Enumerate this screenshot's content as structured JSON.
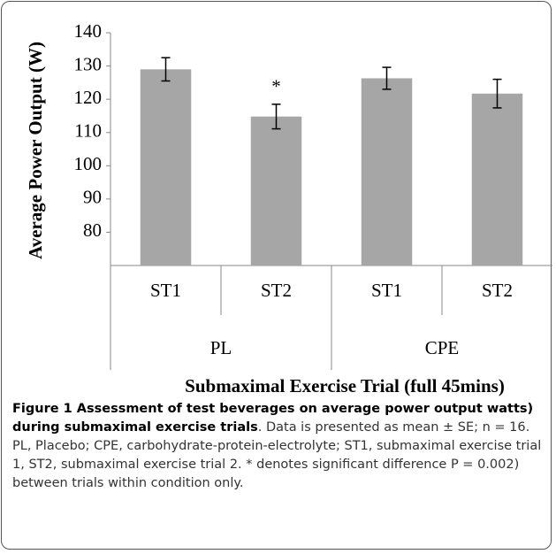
{
  "chart_data": {
    "type": "bar",
    "y_label": "Average Power Output (W)",
    "x_label": "Submaximal Exercise Trial (full 45mins)",
    "categories": [
      "ST1",
      "ST2",
      "ST1",
      "ST2"
    ],
    "groups": [
      "PL",
      "CPE"
    ],
    "values": [
      129,
      114.8,
      126.3,
      121.7
    ],
    "errors": [
      3.5,
      3.7,
      3.3,
      4.3
    ],
    "annotation": "*",
    "color": "#a6a6a6",
    "ylim": [
      70,
      140
    ],
    "yticks": [
      80,
      90,
      100,
      110,
      120,
      130,
      140
    ]
  },
  "caption": {
    "title": "Figure 1 Assessment of test beverages on average power output watts) during submaximal exercise trials",
    "text": ". Data is presented as mean ± SE; n = 16. PL, Placebo; CPE, carbohydrate-protein-electrolyte; ST1, submaximal exercise trial 1, ST2, submaximal exercise trial 2. * denotes significant difference P = 0.002) between trials within condition only."
  }
}
